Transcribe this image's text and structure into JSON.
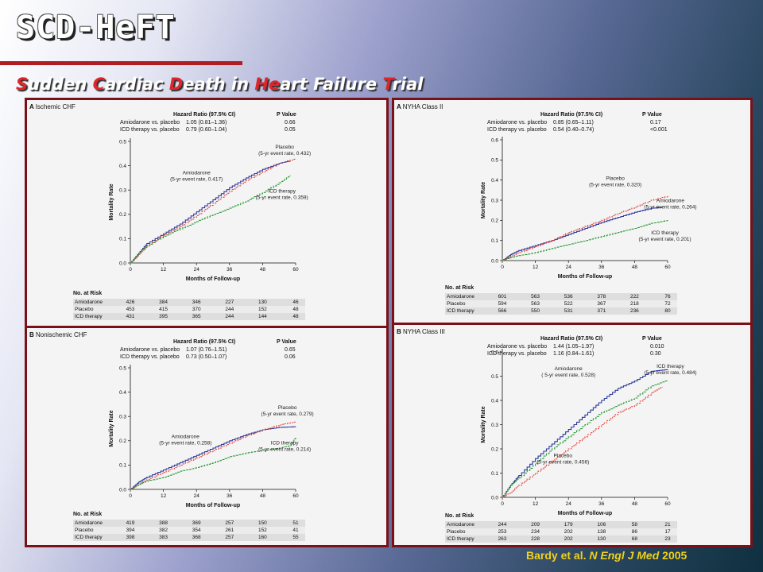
{
  "slide": {
    "title": "SCD-HeFT",
    "subtitle_parts": [
      {
        "cap": "S",
        "rest": "udden "
      },
      {
        "cap": "C",
        "rest": "ardiac "
      },
      {
        "cap": "D",
        "rest": "eath in "
      },
      {
        "cap": "He",
        "rest": "art Failure "
      },
      {
        "cap": "T",
        "rest": "rial"
      }
    ],
    "citation": {
      "authors": "Bardy et al.",
      "journal": "N Engl J Med",
      "year": "2005"
    },
    "colors": {
      "amiodarone": "#2e3a9c",
      "placebo": "#e2403a",
      "icd": "#2e9a3a",
      "border": "#7a1018",
      "title_rule": "#b01e24",
      "citation": "#f2d01a"
    }
  },
  "common": {
    "hr_header": "Hazard Ratio (97.5% CI)",
    "p_header": "P Value",
    "comp_amio": "Amiodarone vs. placebo",
    "comp_icd": "ICD therapy vs. placebo",
    "xlabel": "Months of Follow-up",
    "ylabel": "Mortality Rate",
    "risk_header": "No. at Risk",
    "risk_names": [
      "Amiodarone",
      "Placebo",
      "ICD therapy"
    ]
  },
  "chart_data": [
    {
      "type": "line",
      "panel_label": "A",
      "title": "Ischemic CHF",
      "hr": [
        {
          "hr": "1.05 (0.81–1.36)",
          "p": "0.66"
        },
        {
          "hr": "0.79 (0.60–1.04)",
          "p": "0.05"
        }
      ],
      "x_ticks": [
        0,
        12,
        24,
        36,
        48,
        60
      ],
      "y_ticks": [
        "0.0",
        "0.1",
        "0.2",
        "0.3",
        "0.4",
        "0.5"
      ],
      "xlim": [
        0,
        60
      ],
      "ylim": [
        0,
        0.5
      ],
      "series": [
        {
          "name": "Amiodarone",
          "x": [
            0,
            3,
            6,
            12,
            18,
            24,
            30,
            36,
            42,
            48,
            54,
            58
          ],
          "y": [
            0,
            0.04,
            0.08,
            0.12,
            0.16,
            0.21,
            0.26,
            0.31,
            0.35,
            0.385,
            0.41,
            0.42
          ]
        },
        {
          "name": "Placebo",
          "x": [
            0,
            3,
            6,
            12,
            18,
            24,
            30,
            36,
            42,
            48,
            54,
            60
          ],
          "y": [
            0,
            0.035,
            0.07,
            0.115,
            0.15,
            0.195,
            0.245,
            0.295,
            0.34,
            0.375,
            0.41,
            0.43
          ]
        },
        {
          "name": "ICD therapy",
          "x": [
            0,
            3,
            6,
            12,
            18,
            24,
            30,
            36,
            42,
            48,
            54,
            58
          ],
          "y": [
            0,
            0.04,
            0.07,
            0.11,
            0.14,
            0.17,
            0.2,
            0.225,
            0.255,
            0.29,
            0.33,
            0.36
          ]
        }
      ],
      "annotations": [
        {
          "series": "Placebo",
          "lines": [
            "Placebo",
            "(5-yr event rate, 0.432)"
          ],
          "x": 56,
          "y": 0.47
        },
        {
          "series": "Amiodarone",
          "lines": [
            "Amiodarone",
            "(5-yr event rate, 0.417)"
          ],
          "x": 24,
          "y": 0.365
        },
        {
          "series": "ICD therapy",
          "lines": [
            "ICD therapy",
            "(5-yr event rate, 0.359)"
          ],
          "x": 55,
          "y": 0.29
        }
      ],
      "risk": [
        [
          "426",
          "384",
          "346",
          "227",
          "130",
          "46"
        ],
        [
          "453",
          "415",
          "370",
          "244",
          "152",
          "48"
        ],
        [
          "431",
          "395",
          "365",
          "244",
          "144",
          "48"
        ]
      ]
    },
    {
      "type": "line",
      "panel_label": "B",
      "title": "Nonischemic CHF",
      "hr": [
        {
          "hr": "1.07 (0.76–1.51)",
          "p": "0.65"
        },
        {
          "hr": "0.73 (0.50–1.07)",
          "p": "0.06"
        }
      ],
      "x_ticks": [
        0,
        12,
        24,
        36,
        48,
        60
      ],
      "y_ticks": [
        "0.0",
        "0.1",
        "0.2",
        "0.3",
        "0.4",
        "0.5"
      ],
      "xlim": [
        0,
        60
      ],
      "ylim": [
        0,
        0.5
      ],
      "series": [
        {
          "name": "Amiodarone",
          "x": [
            0,
            3,
            6,
            12,
            18,
            24,
            30,
            36,
            42,
            48,
            54,
            60
          ],
          "y": [
            0,
            0.03,
            0.05,
            0.08,
            0.11,
            0.14,
            0.17,
            0.2,
            0.225,
            0.245,
            0.255,
            0.258
          ]
        },
        {
          "name": "Placebo",
          "x": [
            0,
            3,
            6,
            12,
            18,
            24,
            30,
            36,
            42,
            48,
            54,
            60
          ],
          "y": [
            0,
            0.02,
            0.04,
            0.07,
            0.1,
            0.13,
            0.16,
            0.19,
            0.22,
            0.245,
            0.265,
            0.279
          ]
        },
        {
          "name": "ICD therapy",
          "x": [
            0,
            3,
            6,
            12,
            18,
            24,
            30,
            36,
            42,
            48,
            54,
            58,
            60
          ],
          "y": [
            0,
            0.02,
            0.035,
            0.05,
            0.075,
            0.09,
            0.11,
            0.135,
            0.15,
            0.16,
            0.17,
            0.18,
            0.214
          ]
        }
      ],
      "annotations": [
        {
          "series": "Placebo",
          "lines": [
            "Placebo",
            "(5-yr event rate, 0.279)"
          ],
          "x": 57,
          "y": 0.33
        },
        {
          "series": "Amiodarone",
          "lines": [
            "Amiodarone",
            "(5-yr event rate, 0.258)"
          ],
          "x": 20,
          "y": 0.21
        },
        {
          "series": "ICD therapy",
          "lines": [
            "ICD therapy",
            "(5-yr event rate, 0.214)"
          ],
          "x": 56,
          "y": 0.185
        }
      ],
      "risk": [
        [
          "419",
          "388",
          "369",
          "257",
          "150",
          "51"
        ],
        [
          "394",
          "382",
          "354",
          "261",
          "152",
          "41"
        ],
        [
          "398",
          "383",
          "368",
          "257",
          "160",
          "55"
        ]
      ]
    },
    {
      "type": "line",
      "panel_label": "A",
      "title": "NYHA Class II",
      "hr": [
        {
          "hr": "0.85 (0.65–1.11)",
          "p": "0.17"
        },
        {
          "hr": "0.54 (0.40–0.74)",
          "p": "<0.001"
        }
      ],
      "x_ticks": [
        0,
        12,
        24,
        36,
        48,
        60
      ],
      "y_ticks": [
        "0.0",
        "0.1",
        "0.2",
        "0.3",
        "0.4",
        "0.5",
        "0.6"
      ],
      "xlim": [
        0,
        60
      ],
      "ylim": [
        0,
        0.6
      ],
      "series": [
        {
          "name": "Amiodarone",
          "x": [
            0,
            3,
            6,
            12,
            18,
            24,
            30,
            36,
            42,
            48,
            54,
            58
          ],
          "y": [
            0,
            0.03,
            0.05,
            0.075,
            0.1,
            0.13,
            0.16,
            0.19,
            0.215,
            0.24,
            0.26,
            0.264
          ]
        },
        {
          "name": "Placebo",
          "x": [
            0,
            3,
            6,
            12,
            18,
            24,
            30,
            36,
            42,
            48,
            54,
            60
          ],
          "y": [
            0,
            0.02,
            0.04,
            0.07,
            0.1,
            0.14,
            0.17,
            0.2,
            0.235,
            0.265,
            0.3,
            0.32
          ]
        },
        {
          "name": "ICD therapy",
          "x": [
            0,
            3,
            6,
            12,
            18,
            24,
            30,
            36,
            42,
            48,
            54,
            60
          ],
          "y": [
            0,
            0.015,
            0.025,
            0.04,
            0.06,
            0.08,
            0.1,
            0.12,
            0.14,
            0.16,
            0.185,
            0.201
          ]
        }
      ],
      "annotations": [
        {
          "series": "Placebo",
          "lines": [
            "Placebo",
            "(5-yr event rate, 0.320)"
          ],
          "x": 41,
          "y": 0.4
        },
        {
          "series": "Amiodarone",
          "lines": [
            "Amiodarone",
            "(5-yr event rate, 0.264)"
          ],
          "x": 61,
          "y": 0.29
        },
        {
          "series": "ICD therapy",
          "lines": [
            "ICD therapy",
            "(5-yr event rate, 0.201)"
          ],
          "x": 59,
          "y": 0.13
        }
      ],
      "risk": [
        [
          "601",
          "563",
          "536",
          "378",
          "222",
          "76"
        ],
        [
          "594",
          "563",
          "522",
          "367",
          "218",
          "72"
        ],
        [
          "566",
          "550",
          "531",
          "371",
          "236",
          "80"
        ]
      ]
    },
    {
      "type": "line",
      "panel_label": "B",
      "title": "NYHA Class III",
      "hr": [
        {
          "hr": "1.44 (1.05–1.97)",
          "p": "0.010"
        },
        {
          "hr": "1.16 (0.84–1.61)",
          "p": "0.30"
        }
      ],
      "x_ticks": [
        0,
        12,
        24,
        36,
        48,
        60
      ],
      "y_ticks": [
        "0.0",
        "0.1",
        "0.2",
        "0.3",
        "0.4",
        "0.5",
        "0.6"
      ],
      "xlim": [
        0,
        60
      ],
      "ylim": [
        0,
        0.6
      ],
      "series": [
        {
          "name": "Amiodarone",
          "x": [
            0,
            3,
            6,
            12,
            18,
            24,
            30,
            36,
            42,
            48,
            54,
            60
          ],
          "y": [
            0,
            0.05,
            0.09,
            0.16,
            0.22,
            0.28,
            0.34,
            0.4,
            0.45,
            0.48,
            0.52,
            0.528
          ]
        },
        {
          "name": "Placebo",
          "x": [
            0,
            3,
            6,
            12,
            18,
            24,
            30,
            36,
            42,
            48,
            54,
            58
          ],
          "y": [
            0,
            0.02,
            0.05,
            0.1,
            0.15,
            0.2,
            0.25,
            0.3,
            0.35,
            0.38,
            0.43,
            0.456
          ]
        },
        {
          "name": "ICD therapy",
          "x": [
            0,
            3,
            6,
            12,
            18,
            24,
            30,
            36,
            42,
            48,
            54,
            60
          ],
          "y": [
            0,
            0.05,
            0.08,
            0.14,
            0.2,
            0.25,
            0.3,
            0.35,
            0.38,
            0.41,
            0.46,
            0.484
          ]
        }
      ],
      "annotations": [
        {
          "series": "Amiodarone",
          "lines": [
            "Amiodarone",
            "( 5-yr event rate, 0.528)"
          ],
          "x": 24,
          "y": 0.525
        },
        {
          "series": "ICD therapy",
          "lines": [
            "ICD therapy",
            "(5-yr event rate, 0.484)"
          ],
          "x": 61,
          "y": 0.535
        },
        {
          "series": "Placebo",
          "lines": [
            "Placebo",
            "(5-yr event rate, 0.456)"
          ],
          "x": 22,
          "y": 0.165
        }
      ],
      "risk": [
        [
          "244",
          "209",
          "179",
          "106",
          "58",
          "21"
        ],
        [
          "253",
          "234",
          "202",
          "138",
          "86",
          "17"
        ],
        [
          "263",
          "228",
          "202",
          "130",
          "68",
          "23"
        ]
      ]
    }
  ]
}
